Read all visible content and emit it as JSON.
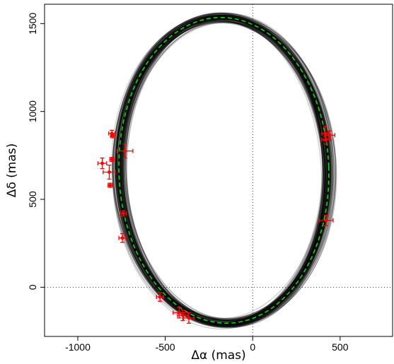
{
  "chart_data": {
    "type": "scatter",
    "xlabel": "Δα (mas)",
    "ylabel": "Δδ (mas)",
    "xlim": [
      -1190,
      800
    ],
    "ylim": [
      -280,
      1610
    ],
    "x_ticks": [
      -1000,
      -500,
      0,
      500
    ],
    "x_tick_labels": [
      "-1000",
      "-500",
      "0",
      "500"
    ],
    "y_ticks": [
      0,
      500,
      1000,
      1500
    ],
    "y_tick_labels": [
      "0",
      "500",
      "1000",
      "1500"
    ],
    "reference_lines": {
      "x": 0,
      "y": 0,
      "style": "dotted"
    },
    "orbit_band_color": "#000000",
    "best_fit_color": "#00dd00",
    "point_color": "#ff0000",
    "best_fit": {
      "center": [
        -165,
        665
      ],
      "semi_axis_x": 600,
      "semi_axis_y": 870,
      "rotation_deg": 2
    },
    "points": [
      {
        "x": -860,
        "y": 705,
        "ex": 25,
        "ey": 30
      },
      {
        "x": -820,
        "y": 655,
        "ex": 35,
        "ey": 40
      },
      {
        "x": -805,
        "y": 875,
        "ex": 18,
        "ey": 18
      },
      {
        "x": -800,
        "y": 862,
        "ex": 12,
        "ey": 12
      },
      {
        "x": -805,
        "y": 727,
        "ex": 12,
        "ey": 12
      },
      {
        "x": -815,
        "y": 580,
        "ex": 12,
        "ey": 12
      },
      {
        "x": -730,
        "y": 775,
        "ex": 45,
        "ey": 40
      },
      {
        "x": -740,
        "y": 420,
        "ex": 18,
        "ey": 15
      },
      {
        "x": -745,
        "y": 280,
        "ex": 20,
        "ey": 25
      },
      {
        "x": -530,
        "y": -55,
        "ex": 20,
        "ey": 25
      },
      {
        "x": -420,
        "y": -145,
        "ex": 35,
        "ey": 30
      },
      {
        "x": -400,
        "y": -160,
        "ex": 30,
        "ey": 30
      },
      {
        "x": -365,
        "y": -175,
        "ex": 30,
        "ey": 30
      },
      {
        "x": 415,
        "y": 875,
        "ex": 20,
        "ey": 40
      },
      {
        "x": 440,
        "y": 865,
        "ex": 30,
        "ey": 25
      },
      {
        "x": 420,
        "y": 840,
        "ex": 25,
        "ey": 25
      },
      {
        "x": 420,
        "y": 380,
        "ex": 40,
        "ey": 30
      }
    ]
  }
}
